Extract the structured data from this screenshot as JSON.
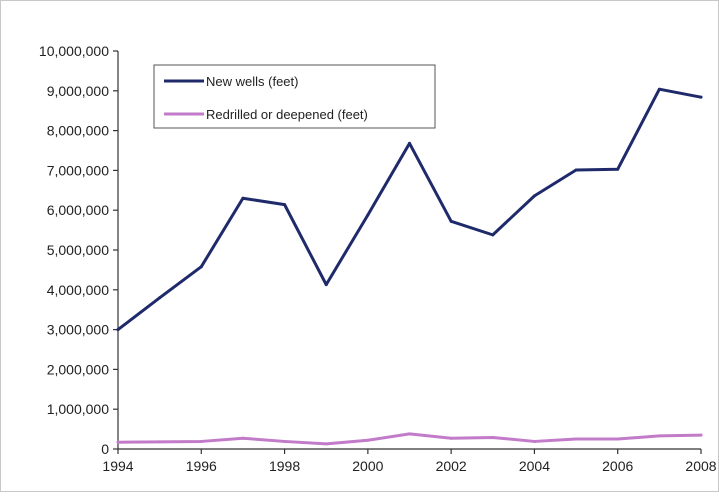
{
  "chart_data": {
    "type": "line",
    "x": [
      1994,
      1995,
      1996,
      1997,
      1998,
      1999,
      2000,
      2001,
      2002,
      2003,
      2004,
      2005,
      2006,
      2007,
      2008
    ],
    "x_ticks": [
      "1994",
      "1996",
      "1998",
      "2000",
      "2002",
      "2004",
      "2006",
      "2008"
    ],
    "y_ticks": [
      "0",
      "1,000,000",
      "2,000,000",
      "3,000,000",
      "4,000,000",
      "5,000,000",
      "6,000,000",
      "7,000,000",
      "8,000,000",
      "9,000,000",
      "10,000,000"
    ],
    "ylim": [
      0,
      10000000
    ],
    "xlim": [
      1994,
      2008
    ],
    "grid": false,
    "legend_position": "top-left",
    "series": [
      {
        "name": "New wells (feet)",
        "color": "#1f2a6b",
        "values": [
          3000000,
          3800000,
          4580000,
          6300000,
          6140000,
          4130000,
          5880000,
          7680000,
          5720000,
          5380000,
          6360000,
          7010000,
          7030000,
          9040000,
          8840000
        ]
      },
      {
        "name": "Redrilled or deepened (feet)",
        "color": "#c27bc8",
        "values": [
          170000,
          180000,
          190000,
          270000,
          190000,
          130000,
          220000,
          380000,
          270000,
          290000,
          190000,
          250000,
          250000,
          330000,
          350000
        ]
      }
    ]
  }
}
